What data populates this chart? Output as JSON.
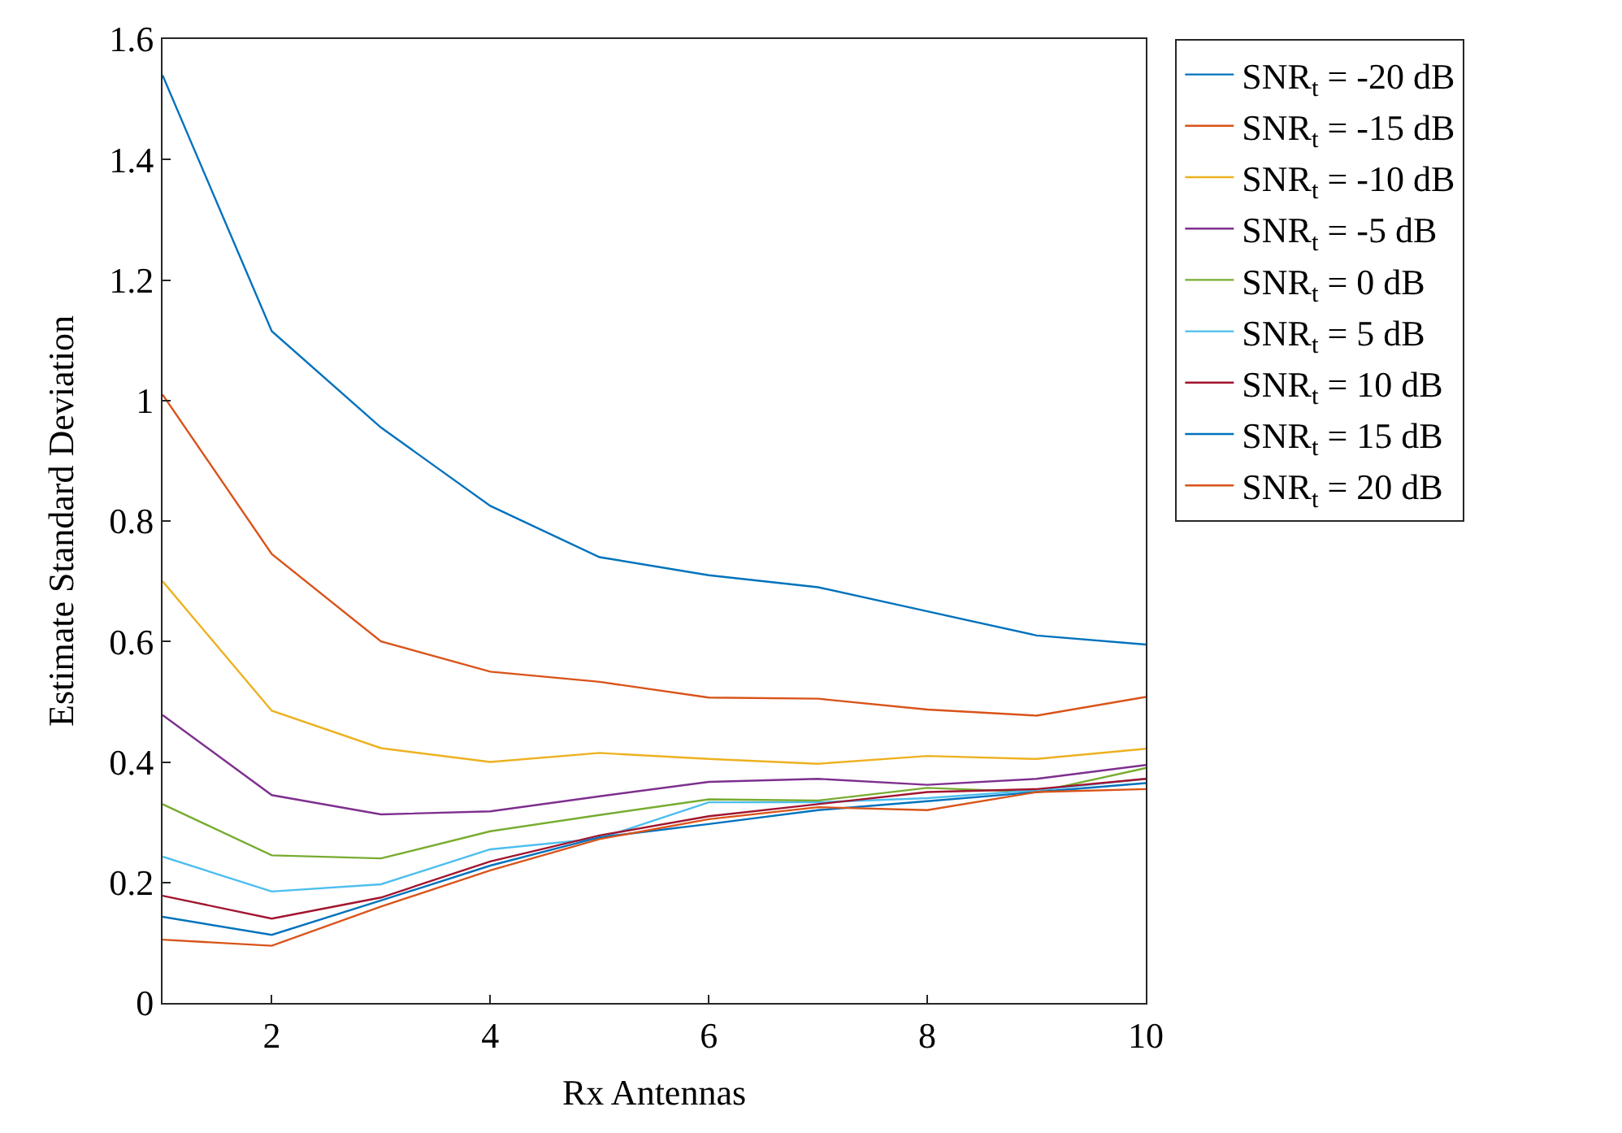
{
  "chart_data": {
    "type": "line",
    "xlabel": "Rx Antennas",
    "ylabel": "Estimate Standard Deviation",
    "x": [
      1,
      2,
      3,
      4,
      5,
      6,
      7,
      8,
      9,
      10
    ],
    "xlim": [
      1,
      10
    ],
    "xticks": [
      2,
      4,
      6,
      8,
      10
    ],
    "ylim": [
      0,
      1.6
    ],
    "yticks": [
      0,
      0.2,
      0.4,
      0.6,
      0.8,
      1,
      1.2,
      1.4,
      1.6
    ],
    "legend": "top right",
    "marker": "none",
    "line_style": "solid",
    "series": [
      {
        "name": "SNR$_{t}$ = -20 dB",
        "color": "#0072bd",
        "values": [
          1.54,
          1.115,
          0.955,
          0.825,
          0.74,
          0.71,
          0.69,
          0.65,
          0.61,
          0.595
        ]
      },
      {
        "name": "SNR$_{t}$ = -15 dB",
        "color": "#d95319",
        "values": [
          1.01,
          0.745,
          0.6,
          0.55,
          0.533,
          0.507,
          0.505,
          0.487,
          0.477,
          0.508
        ]
      },
      {
        "name": "SNR$_{t}$ = -10 dB",
        "color": "#edb120",
        "values": [
          0.7,
          0.485,
          0.423,
          0.4,
          0.415,
          0.405,
          0.397,
          0.41,
          0.405,
          0.422
        ]
      },
      {
        "name": "SNR$_{t}$ = -5 dB",
        "color": "#7e2f8e",
        "values": [
          0.478,
          0.345,
          0.313,
          0.318,
          0.343,
          0.367,
          0.372,
          0.362,
          0.372,
          0.395
        ]
      },
      {
        "name": "SNR$_{t}$ = 0 dB",
        "color": "#77ac30",
        "values": [
          0.33,
          0.245,
          0.24,
          0.285,
          0.312,
          0.338,
          0.336,
          0.357,
          0.35,
          0.39
        ]
      },
      {
        "name": "SNR$_{t}$ = 5 dB",
        "color": "#4dbeee",
        "values": [
          0.243,
          0.185,
          0.197,
          0.255,
          0.273,
          0.333,
          0.333,
          0.34,
          0.353,
          0.372
        ]
      },
      {
        "name": "SNR$_{t}$ = 10 dB",
        "color": "#a2142f",
        "values": [
          0.178,
          0.14,
          0.175,
          0.235,
          0.278,
          0.31,
          0.33,
          0.35,
          0.355,
          0.372
        ]
      },
      {
        "name": "SNR$_{t}$ = 15 dB",
        "color": "#0072bd",
        "values": [
          0.143,
          0.113,
          0.17,
          0.228,
          0.275,
          0.297,
          0.32,
          0.335,
          0.35,
          0.365
        ]
      },
      {
        "name": "SNR$_{t}$ = 20 dB",
        "color": "#d95319",
        "values": [
          0.105,
          0.095,
          0.16,
          0.22,
          0.272,
          0.305,
          0.325,
          0.32,
          0.35,
          0.355
        ]
      }
    ]
  }
}
